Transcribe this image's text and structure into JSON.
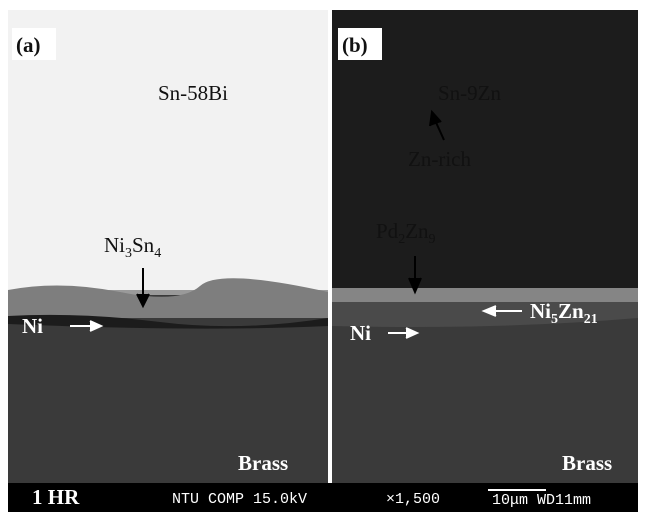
{
  "panels": [
    {
      "tag": "(a)",
      "alloy": "Sn-58Bi",
      "imc": [
        "Ni",
        "3",
        "Sn",
        "4"
      ],
      "layer": "Ni",
      "substrate": "Brass"
    },
    {
      "tag": "(b)",
      "alloy": "Sn-9Zn",
      "phase": "Zn-rich",
      "particle": [
        "Pd",
        "2",
        "Zn",
        "9"
      ],
      "imc": [
        "Ni",
        "5",
        "Zn",
        "21"
      ],
      "layer": "Ni",
      "substrate": "Brass"
    }
  ],
  "footer": {
    "time": "1 HR",
    "instrument": "NTU COMP 15.0kV",
    "magnification": "×1,500",
    "scale": "10μm WD11mm"
  }
}
